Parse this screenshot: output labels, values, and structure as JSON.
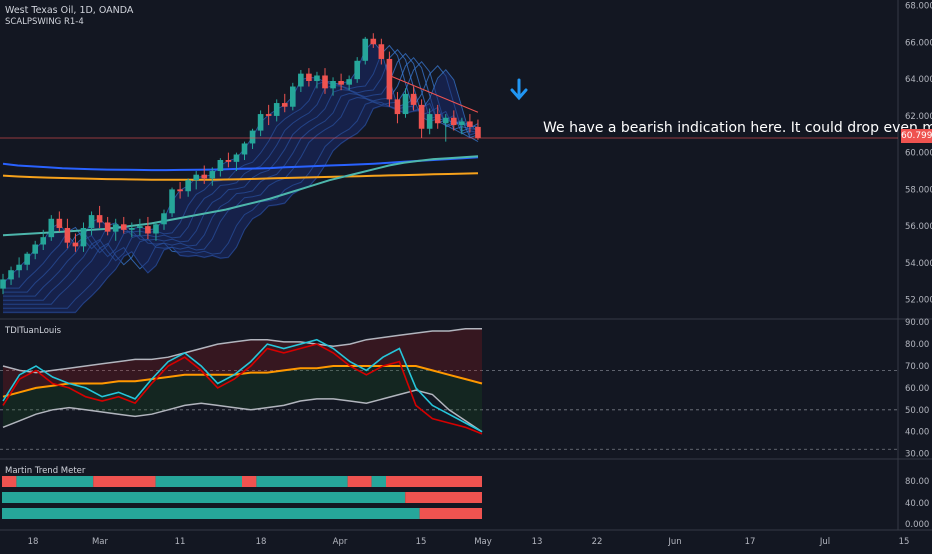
{
  "header": {
    "symbol_title": "West Texas Oil, 1D, OANDA",
    "study_label": "SCALPSWING R1-4"
  },
  "annotation": {
    "text": "We have a bearish indication here. It could drop even more."
  },
  "last_price": "60.799",
  "colors": {
    "background": "#131722",
    "up": "#26a69a",
    "down": "#ef5350",
    "ribbon": "#3a7bd5",
    "ma_blue": "#2962ff",
    "ma_orange": "#f7a21b",
    "ma_teal": "#4db6ac",
    "tdi_green": "#26c6da",
    "tdi_red": "#d50000",
    "tdi_orange": "#ff9800",
    "tdi_band": "#b2b5be",
    "mtm_teal": "#26a69a",
    "mtm_red": "#ef5350",
    "arrow": "#2196f3"
  },
  "panes": {
    "tdi_label": "TDITuanLouis",
    "mtm_label": "Martin Trend Meter"
  },
  "chart_data": [
    {
      "type": "candlestick",
      "price_axis_ticks": [
        "68.000",
        "66.000",
        "64.000",
        "62.000",
        "60.000",
        "58.000",
        "56.000",
        "54.000",
        "52.000"
      ],
      "ylim": [
        51,
        68.2
      ],
      "time_axis_labels": [
        "18",
        "Mar",
        "11",
        "18",
        "Apr",
        "15",
        "May",
        "13",
        "22",
        "Jun",
        "17",
        "Jul",
        "15"
      ],
      "candles": [
        [
          52.6,
          53.4,
          52.3,
          53.1
        ],
        [
          53.1,
          53.8,
          52.8,
          53.6
        ],
        [
          53.6,
          54.3,
          53.2,
          53.9
        ],
        [
          53.9,
          54.6,
          53.6,
          54.5
        ],
        [
          54.5,
          55.2,
          54.2,
          55.0
        ],
        [
          55.0,
          55.8,
          54.7,
          55.4
        ],
        [
          55.4,
          56.6,
          55.2,
          56.4
        ],
        [
          56.4,
          56.8,
          55.7,
          55.9
        ],
        [
          55.9,
          56.4,
          54.8,
          55.1
        ],
        [
          55.1,
          55.6,
          54.6,
          54.9
        ],
        [
          54.9,
          56.2,
          54.6,
          55.9
        ],
        [
          55.9,
          56.8,
          55.5,
          56.6
        ],
        [
          56.6,
          57.1,
          55.9,
          56.2
        ],
        [
          56.2,
          56.5,
          55.5,
          55.7
        ],
        [
          55.7,
          56.4,
          55.2,
          56.1
        ],
        [
          56.1,
          56.5,
          55.6,
          55.8
        ],
        [
          55.8,
          56.2,
          55.4,
          55.9
        ],
        [
          55.9,
          56.4,
          55.5,
          56.0
        ],
        [
          56.0,
          56.5,
          55.3,
          55.6
        ],
        [
          55.6,
          56.2,
          55.2,
          56.1
        ],
        [
          56.1,
          56.9,
          55.8,
          56.7
        ],
        [
          56.7,
          58.1,
          56.5,
          58.0
        ],
        [
          58.0,
          58.4,
          57.5,
          57.9
        ],
        [
          57.9,
          58.6,
          57.6,
          58.5
        ],
        [
          58.5,
          59.0,
          58.0,
          58.8
        ],
        [
          58.8,
          59.3,
          58.3,
          58.6
        ],
        [
          58.6,
          59.2,
          58.2,
          59.0
        ],
        [
          59.0,
          59.7,
          58.7,
          59.6
        ],
        [
          59.6,
          60.0,
          59.2,
          59.5
        ],
        [
          59.5,
          60.0,
          59.0,
          59.9
        ],
        [
          59.9,
          60.6,
          59.6,
          60.5
        ],
        [
          60.5,
          61.3,
          60.2,
          61.2
        ],
        [
          61.2,
          62.3,
          60.9,
          62.1
        ],
        [
          62.1,
          62.6,
          61.5,
          62.0
        ],
        [
          62.0,
          62.9,
          61.7,
          62.7
        ],
        [
          62.7,
          63.2,
          62.2,
          62.5
        ],
        [
          62.5,
          63.8,
          62.3,
          63.6
        ],
        [
          63.6,
          64.5,
          63.3,
          64.3
        ],
        [
          64.3,
          64.6,
          63.6,
          63.9
        ],
        [
          63.9,
          64.4,
          63.5,
          64.2
        ],
        [
          64.2,
          64.6,
          63.2,
          63.5
        ],
        [
          63.5,
          64.1,
          63.1,
          63.9
        ],
        [
          63.9,
          64.3,
          63.4,
          63.7
        ],
        [
          63.7,
          64.2,
          63.4,
          64.0
        ],
        [
          64.0,
          65.2,
          63.8,
          65.0
        ],
        [
          65.0,
          66.3,
          64.8,
          66.2
        ],
        [
          66.2,
          66.5,
          65.7,
          65.9
        ],
        [
          65.9,
          66.2,
          64.8,
          65.1
        ],
        [
          65.1,
          65.5,
          62.5,
          62.9
        ],
        [
          62.9,
          63.3,
          61.6,
          62.1
        ],
        [
          62.1,
          63.5,
          61.9,
          63.2
        ],
        [
          63.2,
          63.6,
          62.3,
          62.6
        ],
        [
          62.6,
          62.9,
          60.8,
          61.3
        ],
        [
          61.3,
          62.4,
          61.0,
          62.1
        ],
        [
          62.1,
          62.6,
          61.3,
          61.6
        ],
        [
          61.6,
          62.1,
          60.6,
          61.9
        ],
        [
          61.9,
          62.3,
          61.2,
          61.5
        ],
        [
          61.5,
          61.9,
          61.0,
          61.7
        ],
        [
          61.7,
          62.1,
          61.1,
          61.4
        ],
        [
          61.4,
          61.8,
          60.7,
          60.8
        ]
      ],
      "ma_slow_blue": [
        59.4,
        59.3,
        59.25,
        59.2,
        59.15,
        59.12,
        59.1,
        59.08,
        59.07,
        59.06,
        59.05,
        59.05,
        59.06,
        59.07,
        59.08,
        59.1,
        59.12,
        59.14,
        59.16,
        59.2,
        59.23,
        59.27,
        59.3,
        59.33,
        59.36,
        59.4,
        59.45,
        59.5,
        59.55,
        59.6,
        59.65,
        59.7,
        59.75
      ],
      "ma_orange": [
        58.75,
        58.7,
        58.67,
        58.64,
        58.62,
        58.6,
        58.58,
        58.56,
        58.55,
        58.54,
        58.53,
        58.52,
        58.52,
        58.52,
        58.53,
        58.54,
        58.55,
        58.57,
        58.6,
        58.62,
        58.64,
        58.66,
        58.68,
        58.7,
        58.72,
        58.74,
        58.76,
        58.78,
        58.8,
        58.82,
        58.84,
        58.86,
        58.88
      ],
      "ma_teal": [
        55.5,
        55.55,
        55.6,
        55.65,
        55.7,
        55.75,
        55.8,
        55.85,
        55.95,
        56.05,
        56.15,
        56.3,
        56.45,
        56.6,
        56.75,
        56.9,
        57.1,
        57.3,
        57.5,
        57.75,
        58.0,
        58.25,
        58.5,
        58.7,
        58.9,
        59.1,
        59.3,
        59.45,
        59.55,
        59.65,
        59.7,
        59.75,
        59.8
      ]
    },
    {
      "type": "line",
      "name": "TDITuanLouis",
      "ticks": [
        "90.00",
        "80.00",
        "70.00",
        "60.00",
        "50.00",
        "40.00",
        "30.00"
      ],
      "ylim": [
        28,
        91
      ],
      "levels": [
        32,
        50,
        68
      ],
      "upper_band": [
        70,
        68,
        67,
        68,
        69,
        70,
        71,
        72,
        73,
        73,
        74,
        76,
        78,
        80,
        81,
        82,
        82,
        81,
        81,
        80,
        79,
        80,
        82,
        83,
        84,
        85,
        86,
        86,
        87,
        87
      ],
      "lower_band": [
        42,
        45,
        48,
        50,
        51,
        50,
        49,
        48,
        47,
        48,
        50,
        52,
        53,
        52,
        51,
        50,
        51,
        52,
        54,
        55,
        55,
        54,
        53,
        55,
        57,
        59,
        57,
        50,
        45,
        40
      ],
      "mid_band": [
        56,
        58,
        60,
        61,
        62,
        62,
        62,
        63,
        63,
        64,
        65,
        66,
        66,
        66,
        66,
        67,
        67,
        68,
        69,
        69,
        70,
        70,
        70,
        70,
        70,
        70,
        68,
        66,
        64,
        62
      ],
      "green_line": [
        54,
        66,
        70,
        65,
        62,
        60,
        56,
        58,
        55,
        64,
        72,
        76,
        70,
        62,
        66,
        72,
        80,
        78,
        80,
        82,
        78,
        72,
        68,
        74,
        78,
        60,
        52,
        48,
        44,
        40
      ],
      "red_line": [
        52,
        64,
        68,
        62,
        60,
        56,
        54,
        56,
        53,
        62,
        70,
        74,
        68,
        60,
        64,
        70,
        78,
        76,
        78,
        80,
        76,
        70,
        66,
        70,
        72,
        52,
        46,
        44,
        42,
        39
      ]
    },
    {
      "type": "bar",
      "name": "Martin Trend Meter",
      "ticks": [
        "80.00",
        "40.00",
        "0.000"
      ],
      "rows": [
        {
          "segments": [
            [
              "red",
              0.03
            ],
            [
              "teal",
              0.16
            ],
            [
              "red",
              0.13
            ],
            [
              "teal",
              0.18
            ],
            [
              "red",
              0.03
            ],
            [
              "teal",
              0.19
            ],
            [
              "red",
              0.05
            ],
            [
              "teal",
              0.03
            ],
            [
              "red",
              0.2
            ]
          ]
        },
        {
          "segments": [
            [
              "teal",
              0.84
            ],
            [
              "red",
              0.16
            ]
          ]
        },
        {
          "segments": [
            [
              "teal",
              0.87
            ],
            [
              "red",
              0.13
            ]
          ]
        }
      ]
    }
  ]
}
